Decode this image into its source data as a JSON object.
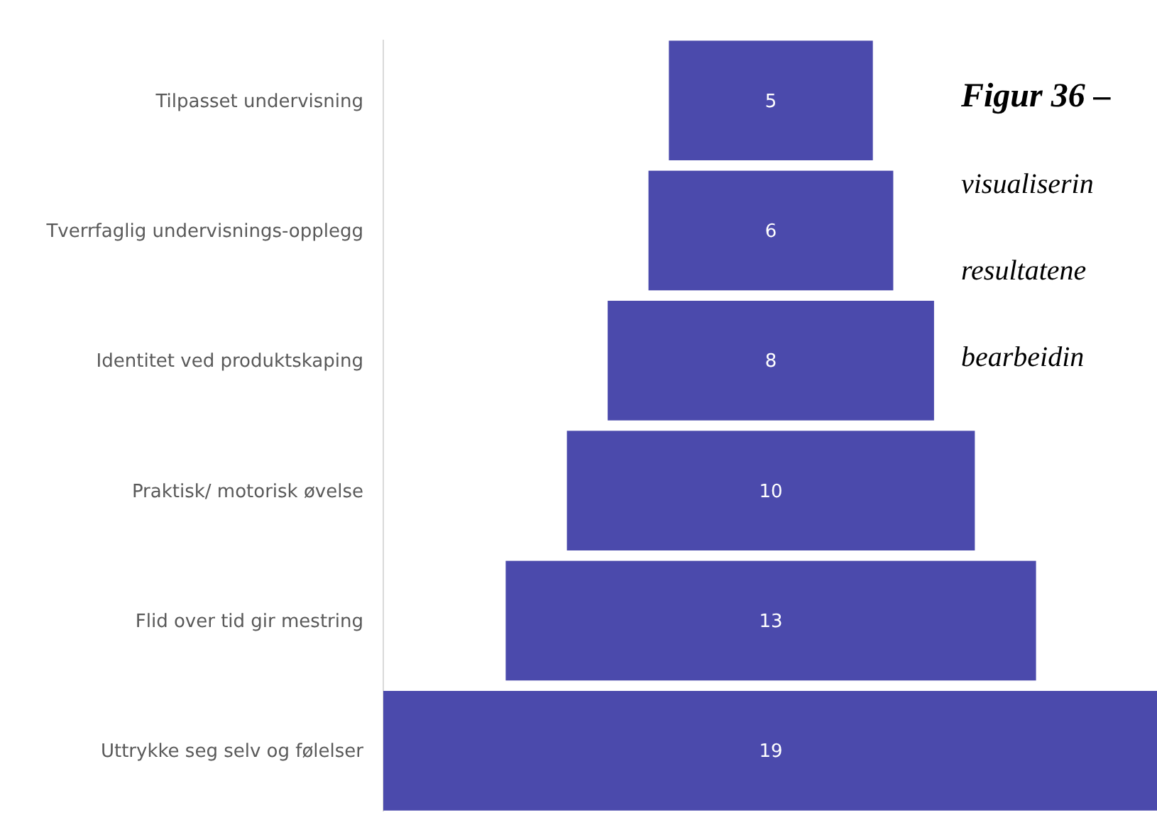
{
  "chart_data": {
    "type": "other",
    "categories": [
      "Tilpasset undervisning",
      "Tverrfaglig undervisnings-opplegg",
      "Identitet ved produktskaping",
      "Praktisk/ motorisk øvelse",
      "Flid over tid gir mestring",
      "Uttrykke seg selv og følelser"
    ],
    "values": [
      5,
      6,
      8,
      10,
      13,
      19
    ],
    "color": "#4b4aac",
    "data_labels": true,
    "annotations": [
      "Figur 36 –",
      "visualiserin",
      "resultatene",
      "bearbeidin"
    ]
  }
}
